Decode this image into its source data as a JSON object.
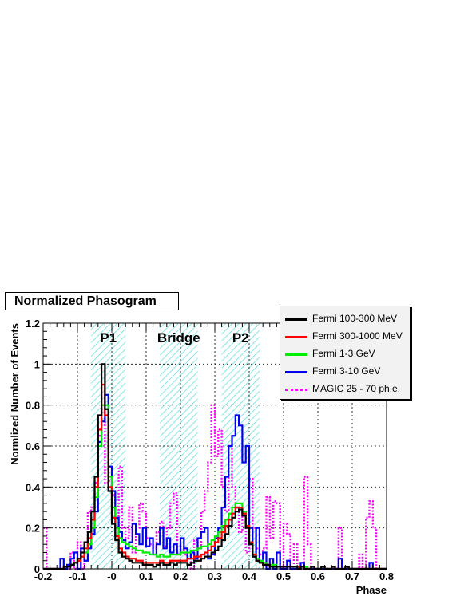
{
  "chart_data": {
    "type": "histogram-line",
    "title": "Normalized Phasogram",
    "xlabel": "Phase",
    "ylabel": "Normlized Number of Events",
    "xlim": [
      -0.2,
      0.8
    ],
    "ylim": [
      0,
      1.2
    ],
    "xticks": [
      -0.2,
      -0.1,
      0.0,
      0.1,
      0.2,
      0.3,
      0.4,
      0.5,
      0.6,
      0.7,
      0.8
    ],
    "xtick_labels": [
      "-0.2",
      "-0.1",
      "-0",
      "0.1",
      "0.2",
      "0.3",
      "0.4",
      "0.5",
      "0.6",
      "0.7",
      "0.8"
    ],
    "yticks": [
      0,
      0.2,
      0.4,
      0.6,
      0.8,
      1.0,
      1.2
    ],
    "ytick_labels": [
      "0",
      "0.2",
      "0.4",
      "0.6",
      "0.8",
      "1",
      "1.2"
    ],
    "grid": true,
    "legend_position": "top-right",
    "regions": [
      {
        "label": "P1",
        "x0": -0.06,
        "x1": 0.04
      },
      {
        "label": "Bridge",
        "x0": 0.14,
        "x1": 0.25
      },
      {
        "label": "P2",
        "x0": 0.32,
        "x1": 0.43
      }
    ],
    "bin_width": 0.01,
    "x_start": -0.2,
    "series": [
      {
        "name": "Fermi 100-300 MeV",
        "color": "#000000",
        "style": "solid",
        "values": [
          0,
          0,
          0,
          0,
          0,
          0,
          0.01,
          0.01,
          0.02,
          0.03,
          0.05,
          0.08,
          0.13,
          0.18,
          0.28,
          0.45,
          0.75,
          1.0,
          0.78,
          0.38,
          0.22,
          0.14,
          0.08,
          0.06,
          0.05,
          0.04,
          0.03,
          0.03,
          0.03,
          0.02,
          0.02,
          0.02,
          0.01,
          0.02,
          0.03,
          0.02,
          0.02,
          0.03,
          0.02,
          0.03,
          0.03,
          0.03,
          0.02,
          0.03,
          0.04,
          0.04,
          0.05,
          0.06,
          0.06,
          0.08,
          0.09,
          0.11,
          0.14,
          0.17,
          0.21,
          0.25,
          0.28,
          0.29,
          0.26,
          0.2,
          0.12,
          0.06,
          0.04,
          0.03,
          0.02,
          0.02,
          0.01,
          0.01,
          0.01,
          0.01,
          0.01,
          0.01,
          0.01,
          0.01,
          0.0,
          0.01,
          0.0,
          0.0,
          0.01,
          0.0,
          0.0,
          0.01,
          0.0,
          0.0,
          0.01,
          0.0,
          0.0,
          0.0,
          0.01,
          0,
          0,
          0,
          0,
          0,
          0,
          0,
          0,
          0,
          0,
          0
        ]
      },
      {
        "name": "Fermi 300-1000 MeV",
        "color": "#ff0000",
        "style": "solid",
        "values": [
          0,
          0,
          0,
          0,
          0,
          0,
          0.01,
          0.01,
          0.02,
          0.03,
          0.04,
          0.06,
          0.1,
          0.15,
          0.24,
          0.4,
          0.68,
          0.9,
          0.75,
          0.4,
          0.25,
          0.16,
          0.1,
          0.08,
          0.06,
          0.05,
          0.05,
          0.04,
          0.04,
          0.03,
          0.03,
          0.03,
          0.03,
          0.03,
          0.04,
          0.03,
          0.03,
          0.04,
          0.04,
          0.04,
          0.04,
          0.04,
          0.05,
          0.05,
          0.06,
          0.06,
          0.07,
          0.08,
          0.09,
          0.11,
          0.13,
          0.15,
          0.18,
          0.21,
          0.24,
          0.27,
          0.3,
          0.3,
          0.27,
          0.21,
          0.13,
          0.07,
          0.04,
          0.03,
          0.02,
          0.02,
          0.01,
          0.01,
          0.01,
          0.01,
          0.01,
          0.01,
          0.01,
          0.01,
          0.01,
          0.01,
          0.0,
          0.0,
          0.01,
          0.0,
          0.0,
          0.01,
          0.0,
          0.0,
          0.01,
          0.0,
          0.0,
          0.0,
          0.01,
          0,
          0,
          0,
          0,
          0,
          0,
          0,
          0,
          0,
          0,
          0
        ]
      },
      {
        "name": "Fermi 1-3 GeV",
        "color": "#00ee00",
        "style": "solid",
        "values": [
          0,
          0,
          0,
          0,
          0,
          0,
          0.01,
          0.01,
          0.02,
          0.03,
          0.04,
          0.06,
          0.08,
          0.12,
          0.2,
          0.35,
          0.6,
          0.8,
          0.8,
          0.45,
          0.3,
          0.2,
          0.15,
          0.13,
          0.12,
          0.11,
          0.1,
          0.09,
          0.09,
          0.08,
          0.08,
          0.07,
          0.07,
          0.06,
          0.07,
          0.06,
          0.06,
          0.07,
          0.07,
          0.07,
          0.08,
          0.08,
          0.08,
          0.09,
          0.09,
          0.1,
          0.11,
          0.11,
          0.12,
          0.14,
          0.16,
          0.18,
          0.21,
          0.24,
          0.27,
          0.3,
          0.32,
          0.32,
          0.28,
          0.21,
          0.12,
          0.07,
          0.05,
          0.04,
          0.03,
          0.02,
          0.02,
          0.02,
          0.01,
          0.01,
          0.01,
          0.01,
          0.01,
          0.01,
          0.01,
          0.01,
          0.01,
          0.0,
          0.01,
          0.0,
          0.0,
          0.01,
          0.0,
          0.0,
          0.01,
          0.0,
          0.0,
          0.0,
          0.01,
          0,
          0,
          0,
          0,
          0,
          0,
          0,
          0,
          0,
          0,
          0
        ]
      },
      {
        "name": "Fermi 3-10 GeV",
        "color": "#0000ee",
        "style": "solid",
        "values": [
          0,
          0,
          0,
          0,
          0,
          0.05,
          0,
          0.02,
          0.05,
          0.08,
          0,
          0.1,
          0.04,
          0.1,
          0.17,
          0.28,
          0.62,
          0.72,
          0.85,
          0.5,
          0.38,
          0.25,
          0.18,
          0.14,
          0.1,
          0.13,
          0.22,
          0.17,
          0.12,
          0.2,
          0.11,
          0.15,
          0.07,
          0.12,
          0.2,
          0.1,
          0.15,
          0.08,
          0.12,
          0.07,
          0.15,
          0.1,
          0.05,
          0.08,
          0.05,
          0.15,
          0.18,
          0.2,
          0.05,
          0.07,
          0.15,
          0.2,
          0.3,
          0.45,
          0.6,
          0.65,
          0.75,
          0.7,
          0.52,
          0.6,
          0.2,
          0.06,
          0.2,
          0.04,
          0.08,
          0.0,
          0.05,
          0.0,
          0.08,
          0.0,
          0.0,
          0.04,
          0.0,
          0.0,
          0.0,
          0.03,
          0.0,
          0.0,
          0.0,
          0.0,
          0.0,
          0.0,
          0.0,
          0.0,
          0.0,
          0.0,
          0.05,
          0.0,
          0.0,
          0.0,
          0.0,
          0.0,
          0.0,
          0.0,
          0.0,
          0.03,
          0.0,
          0.0,
          0.0,
          0.0
        ]
      },
      {
        "name": "MAGIC 25 - 70 ph.e.",
        "color": "#ff00ff",
        "style": "dotted",
        "values": [
          0.2,
          0,
          0,
          0,
          0,
          0,
          0,
          0,
          0.08,
          0,
          0.13,
          0,
          0.08,
          0.28,
          0.3,
          0.42,
          0.65,
          0.78,
          0.42,
          0.43,
          0.36,
          0.18,
          0.5,
          0.2,
          0.15,
          0.3,
          0.08,
          0.2,
          0.32,
          0.28,
          0.15,
          0.12,
          0.1,
          0.18,
          0.23,
          0.11,
          0.2,
          0.32,
          0.37,
          0.08,
          0.11,
          0.07,
          0.05,
          0.0,
          0.14,
          0.1,
          0.28,
          0.38,
          0.52,
          0.8,
          0.55,
          0.68,
          0.4,
          0.28,
          0.6,
          0.4,
          0.3,
          0.18,
          0.28,
          0.08,
          0.44,
          0.2,
          0.1,
          0.07,
          0.1,
          0.35,
          0.15,
          0.33,
          0.32,
          0.0,
          0.22,
          0.17,
          0.0,
          0.12,
          0.0,
          0.0,
          0.45,
          0.12,
          0.0,
          0.0,
          0.0,
          0.0,
          0.0,
          0.0,
          0.0,
          0.0,
          0.2,
          0.0,
          0.0,
          0.0,
          0.0,
          0.0,
          0.07,
          0.0,
          0.25,
          0.33,
          0.2,
          0.0,
          0.0,
          0.0
        ]
      }
    ]
  }
}
